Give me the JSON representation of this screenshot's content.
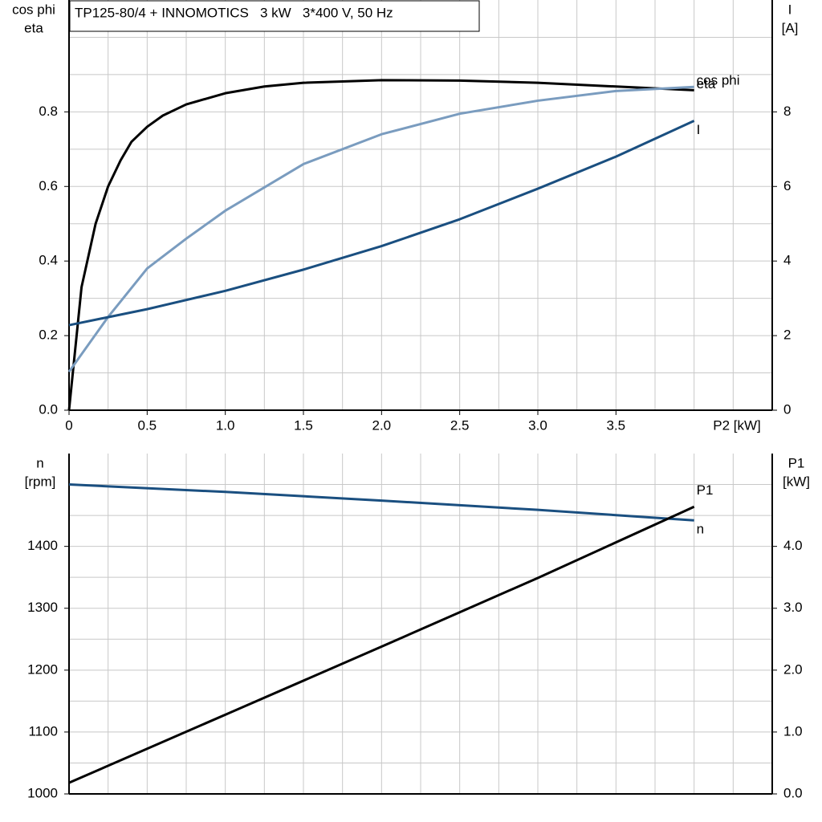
{
  "chart_data": [
    {
      "type": "line",
      "title": "TP125-80/4 + INNOMOTICS   3 kW   3*400 V, 50 Hz",
      "x_label": "P2 [kW]",
      "y_label": [
        "cos phi",
        "eta"
      ],
      "y2_label": [
        "I",
        "[A]"
      ],
      "xlim": [
        0,
        4.5
      ],
      "xticks": [
        {
          "value": 0,
          "label": "0"
        },
        0.5,
        {
          "value": 1,
          "label": "1.0"
        },
        1.5,
        {
          "value": 2,
          "label": "2.0"
        },
        2.5,
        {
          "value": 3,
          "label": "3.0"
        },
        3.5
      ],
      "xgrid": [
        0,
        0.25,
        0.5,
        0.75,
        1,
        1.25,
        1.5,
        1.75,
        2,
        2.25,
        2.5,
        2.75,
        3,
        3.25,
        3.5,
        3.75,
        4,
        4.25,
        4.5
      ],
      "ylim": [
        0,
        1.1
      ],
      "yticks": [
        {
          "value": 0,
          "label": "0.0"
        },
        0.2,
        0.4,
        0.6,
        0.8
      ],
      "ygrid": [
        0,
        0.1,
        0.2,
        0.3,
        0.4,
        0.5,
        0.6,
        0.7,
        0.8,
        0.9,
        1.0
      ],
      "y2lim": [
        0,
        11
      ],
      "y2ticks": [
        0,
        2,
        4,
        6,
        8
      ],
      "grid": true,
      "series": [
        {
          "name": "eta",
          "color": "#000000",
          "x": [
            0,
            0.08,
            0.17,
            0.25,
            0.33,
            0.4,
            0.5,
            0.6,
            0.75,
            1.0,
            1.25,
            1.5,
            2.0,
            2.5,
            3.0,
            3.5,
            4.0
          ],
          "values": [
            0,
            0.33,
            0.5,
            0.6,
            0.67,
            0.72,
            0.76,
            0.79,
            0.82,
            0.85,
            0.868,
            0.878,
            0.885,
            0.884,
            0.878,
            0.868,
            0.858
          ]
        },
        {
          "name": "cos phi",
          "color": "#7a9cbf",
          "x": [
            0,
            0.25,
            0.5,
            0.75,
            1.0,
            1.5,
            2.0,
            2.5,
            3.0,
            3.5,
            4.0
          ],
          "values": [
            0.103,
            0.25,
            0.38,
            0.46,
            0.535,
            0.66,
            0.74,
            0.795,
            0.83,
            0.856,
            0.867
          ]
        },
        {
          "name": "I",
          "color": "#1a4f80",
          "axis": "y2",
          "x": [
            0,
            0.5,
            1.0,
            1.5,
            2.0,
            2.5,
            3.0,
            3.5,
            4.0
          ],
          "values": [
            2.28,
            2.71,
            3.2,
            3.77,
            4.4,
            5.12,
            5.94,
            6.8,
            7.76
          ]
        }
      ]
    },
    {
      "type": "line",
      "y_label": [
        "n",
        "[rpm]"
      ],
      "y2_label": [
        "P1",
        "[kW]"
      ],
      "xlim": [
        0,
        4.5
      ],
      "xgrid": [
        0,
        0.25,
        0.5,
        0.75,
        1,
        1.25,
        1.5,
        1.75,
        2,
        2.25,
        2.5,
        2.75,
        3,
        3.25,
        3.5,
        3.75,
        4,
        4.25,
        4.5
      ],
      "ylim": [
        1000,
        1550
      ],
      "yticks": [
        1000,
        1100,
        1200,
        1300,
        1400
      ],
      "ygrid": [
        1000,
        1050,
        1100,
        1150,
        1200,
        1250,
        1300,
        1350,
        1400,
        1450,
        1500
      ],
      "y2lim": [
        0,
        5.5
      ],
      "y2ticks": [
        {
          "value": 0,
          "label": "0.0"
        },
        {
          "value": 1,
          "label": "1.0"
        },
        {
          "value": 2,
          "label": "2.0"
        },
        {
          "value": 3,
          "label": "3.0"
        },
        {
          "value": 4,
          "label": "4.0"
        }
      ],
      "grid": true,
      "series": [
        {
          "name": "n",
          "color": "#1a4f80",
          "x": [
            0,
            1,
            2,
            3,
            4
          ],
          "values": [
            1500,
            1488,
            1474,
            1459,
            1442
          ]
        },
        {
          "name": "P1",
          "color": "#000000",
          "axis": "y2",
          "x": [
            0,
            1,
            2,
            3,
            4
          ],
          "values": [
            0.18,
            1.28,
            2.38,
            3.49,
            4.64
          ]
        }
      ]
    }
  ]
}
